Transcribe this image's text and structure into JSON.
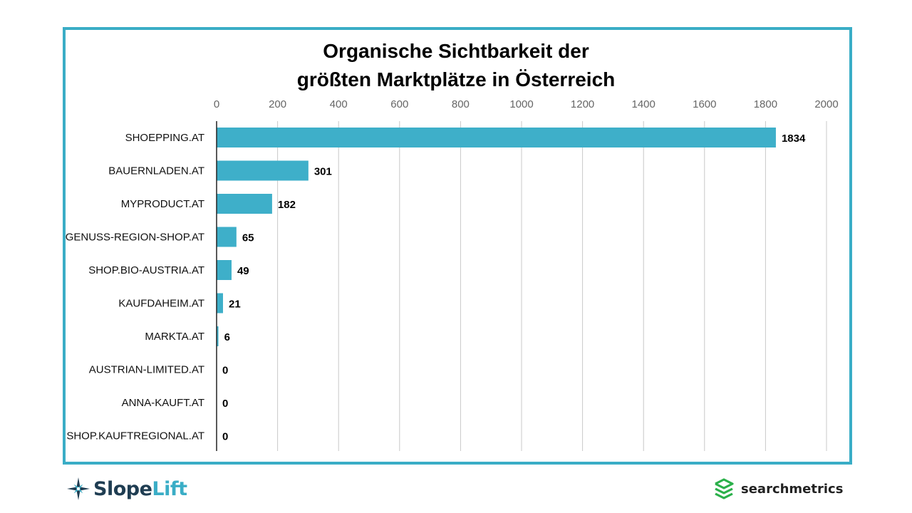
{
  "title_lines": [
    "Organische Sichtbarkeit der",
    "größten Marktplätze in Österreich"
  ],
  "colors": {
    "bar": "#3eafc9",
    "frame": "#3aadc6",
    "grid": "#c8c8c8"
  },
  "chart_data": {
    "type": "bar",
    "orientation": "horizontal",
    "title": "Organische Sichtbarkeit der größten Marktplätze in Österreich",
    "categories": [
      "SHOEPPING.AT",
      "BAUERNLADEN.AT",
      "MYPRODUCT.AT",
      "GENUSS-REGION-SHOP.AT",
      "SHOP.BIO-AUSTRIA.AT",
      "KAUFDAHEIM.AT",
      "MARKTA.AT",
      "AUSTRIAN-LIMITED.AT",
      "ANNA-KAUFT.AT",
      "SHOP.KAUFTREGIONAL.AT"
    ],
    "values": [
      1834,
      301,
      182,
      65,
      49,
      21,
      6,
      0,
      0,
      0
    ],
    "data_labels": [
      "1834",
      "301",
      "182",
      "65",
      "49",
      "21",
      "6",
      "0",
      "0",
      "0"
    ],
    "xlim": [
      0,
      2000
    ],
    "x_ticks": [
      0,
      200,
      400,
      600,
      800,
      1000,
      1200,
      1400,
      1600,
      1800,
      2000
    ],
    "x_axis_position": "top",
    "grid": "vertical",
    "legend": "none"
  },
  "logos": {
    "left": {
      "name": "SlopeLift",
      "part1": "Slope",
      "part2": "Lift",
      "icon": "compass-star-icon"
    },
    "right": {
      "name": "searchmetrics",
      "icon": "layers-icon"
    }
  }
}
